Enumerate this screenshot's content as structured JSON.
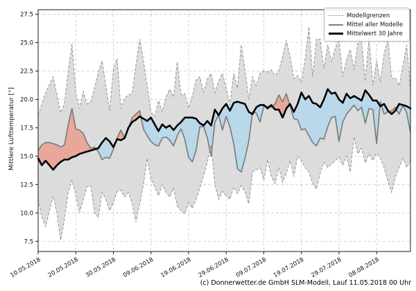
{
  "figure": {
    "ylabel": "Mittlere Lufttemperatur [°]",
    "caption": "(c) Donnerwetter.de GmbH SLM-Modell, Lauf 11.05.2018 00 Uhr"
  },
  "legend": {
    "items": [
      {
        "label": "Modellgrenzen",
        "style": "dashed-gray-line"
      },
      {
        "label": "Mittel aller Modelle",
        "style": "solid-gray-line"
      },
      {
        "label": "Mittelwert 30 Jahre",
        "style": "thick-black-line"
      }
    ]
  },
  "chart_data": {
    "type": "line",
    "title": "",
    "xlabel": "",
    "ylabel": "Mittlere Lufttemperatur [°]",
    "ylim": [
      6.6,
      27.9
    ],
    "yticks": [
      7.5,
      10.0,
      12.5,
      15.0,
      17.5,
      20.0,
      22.5,
      25.0,
      27.5
    ],
    "days": 100,
    "start_date": "10.05.2018",
    "xtick_days": [
      0,
      10,
      20,
      30,
      40,
      50,
      60,
      70,
      80,
      90
    ],
    "xtick_labels": [
      "10.05.2018",
      "20.05.2018",
      "30.05.2018",
      "09.06.2018",
      "19.06.2018",
      "29.06.2018",
      "09.07.2018",
      "19.07.2018",
      "29.07.2018",
      "08.08.2018"
    ],
    "grid": true,
    "legend_position": "top-right",
    "colors": {
      "band_fill": "#dcdcdc",
      "band_edge": "#9b9b9b",
      "above_fill": "#e9a79c",
      "below_fill": "#b9d8e9",
      "model_mean_line": "#7d7d7d",
      "climate_mean_line": "#000000",
      "grid_line": "#c9c9c9",
      "frame": "#1a1a1a"
    },
    "series": [
      {
        "name": "Modellgrenzen oben",
        "values": [
          18.6,
          19.6,
          20.6,
          21.3,
          22.0,
          20.4,
          18.8,
          19.6,
          22.5,
          24.9,
          20.6,
          19.2,
          20.7,
          19.6,
          19.8,
          21.0,
          22.4,
          23.4,
          21.2,
          19.0,
          22.6,
          23.6,
          19.2,
          20.1,
          20.4,
          20.5,
          23.0,
          25.3,
          23.4,
          21.2,
          18.9,
          18.5,
          19.9,
          18.9,
          20.2,
          20.9,
          20.2,
          23.3,
          20.4,
          20.5,
          19.2,
          20.3,
          21.7,
          22.0,
          20.6,
          21.8,
          22.3,
          20.6,
          21.6,
          22.3,
          21.0,
          19.5,
          22.3,
          21.0,
          24.8,
          22.6,
          20.0,
          22.0,
          21.2,
          22.3,
          22.5,
          22.4,
          22.6,
          22.1,
          22.5,
          23.8,
          25.2,
          23.8,
          21.8,
          22.1,
          21.5,
          23.5,
          26.4,
          22.0,
          25.3,
          25.3,
          22.7,
          24.8,
          23.3,
          24.5,
          25.3,
          22.0,
          23.5,
          24.4,
          22.6,
          25.0,
          25.2,
          21.6,
          25.4,
          21.2,
          23.4,
          21.5,
          24.0,
          25.3,
          21.8,
          21.9,
          21.2,
          23.0,
          24.8,
          20.9
        ]
      },
      {
        "name": "Modellgrenzen unten",
        "values": [
          11.2,
          9.6,
          8.8,
          10.2,
          11.5,
          10.0,
          7.6,
          9.5,
          11.8,
          12.9,
          11.6,
          10.0,
          11.2,
          12.3,
          12.4,
          10.0,
          9.6,
          11.8,
          11.2,
          10.2,
          10.9,
          11.9,
          12.0,
          11.4,
          11.8,
          10.8,
          9.2,
          10.8,
          12.5,
          14.8,
          13.0,
          12.3,
          11.5,
          12.5,
          11.8,
          11.4,
          12.2,
          10.6,
          10.2,
          9.9,
          10.9,
          10.4,
          11.2,
          12.2,
          13.3,
          14.5,
          16.0,
          12.5,
          11.2,
          11.9,
          11.5,
          11.2,
          12.3,
          11.7,
          12.4,
          11.9,
          10.8,
          13.6,
          13.8,
          14.0,
          12.9,
          14.7,
          13.2,
          12.6,
          14.0,
          12.7,
          13.5,
          14.6,
          13.2,
          15.0,
          14.6,
          14.0,
          13.6,
          12.6,
          12.1,
          13.5,
          14.5,
          14.0,
          14.3,
          14.6,
          14.9,
          14.2,
          15.0,
          13.6,
          16.7,
          15.2,
          15.7,
          14.4,
          15.2,
          14.6,
          15.3,
          14.8,
          14.0,
          12.8,
          11.8,
          13.2,
          14.0,
          14.8,
          14.0,
          14.6
        ]
      },
      {
        "name": "Mittel aller Modelle",
        "values": [
          15.5,
          16.0,
          16.2,
          16.2,
          16.1,
          16.0,
          15.8,
          16.0,
          17.8,
          19.2,
          17.4,
          17.3,
          17.0,
          16.2,
          15.7,
          15.8,
          15.4,
          14.7,
          14.9,
          14.8,
          15.6,
          16.6,
          17.3,
          16.6,
          17.4,
          18.4,
          18.7,
          19.0,
          17.4,
          16.8,
          16.3,
          16.0,
          15.9,
          16.6,
          16.7,
          16.4,
          15.9,
          16.8,
          17.4,
          16.5,
          14.9,
          14.5,
          15.5,
          17.6,
          17.6,
          16.6,
          15.0,
          18.0,
          18.6,
          17.3,
          18.5,
          17.6,
          16.1,
          13.9,
          13.6,
          14.8,
          16.3,
          18.9,
          18.8,
          18.0,
          19.4,
          19.4,
          19.3,
          19.6,
          20.4,
          19.8,
          20.5,
          19.4,
          18.3,
          18.2,
          17.3,
          17.4,
          16.8,
          16.2,
          15.9,
          16.6,
          16.5,
          17.6,
          18.4,
          18.5,
          16.3,
          18.0,
          18.7,
          19.1,
          19.5,
          19.0,
          19.3,
          17.9,
          19.2,
          19.1,
          16.1,
          19.8,
          18.7,
          18.9,
          19.0,
          19.3,
          18.7,
          19.5,
          18.8,
          17.1
        ]
      },
      {
        "name": "Mittelwert 30 Jahre",
        "values": [
          14.8,
          14.2,
          14.6,
          14.2,
          13.8,
          14.2,
          14.5,
          14.7,
          14.7,
          14.9,
          15.0,
          15.2,
          15.3,
          15.4,
          15.5,
          15.6,
          15.7,
          16.2,
          16.6,
          16.3,
          15.8,
          16.5,
          16.4,
          16.6,
          17.5,
          18.0,
          18.2,
          18.5,
          18.3,
          18.1,
          18.4,
          17.8,
          17.2,
          17.8,
          17.5,
          17.7,
          17.3,
          17.7,
          18.0,
          18.4,
          18.4,
          18.4,
          18.3,
          17.9,
          17.7,
          18.1,
          17.7,
          19.1,
          18.6,
          19.2,
          19.6,
          19.0,
          19.7,
          19.8,
          19.7,
          19.6,
          18.9,
          18.7,
          19.3,
          19.5,
          19.5,
          19.2,
          19.5,
          19.1,
          19.1,
          18.4,
          19.2,
          19.6,
          18.9,
          19.6,
          20.6,
          20.0,
          20.3,
          19.7,
          19.6,
          19.3,
          20.0,
          20.9,
          20.5,
          20.6,
          20.0,
          19.7,
          20.5,
          20.1,
          20.3,
          20.1,
          19.9,
          20.8,
          20.4,
          19.9,
          19.9,
          19.4,
          19.6,
          19.0,
          18.7,
          19.0,
          19.6,
          19.5,
          19.4,
          19.2
        ]
      }
    ]
  }
}
